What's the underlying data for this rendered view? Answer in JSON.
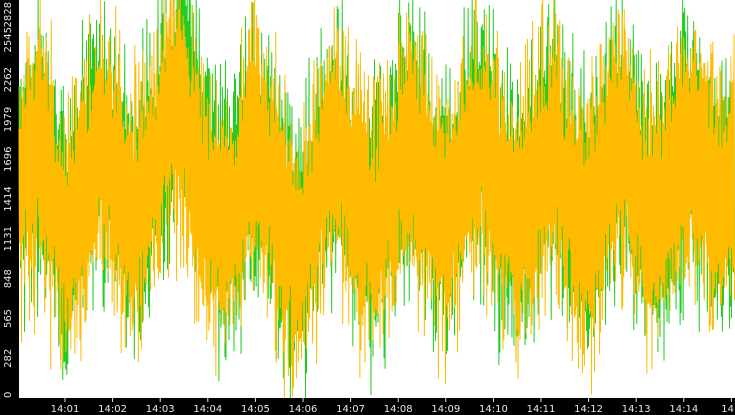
{
  "chart_data": {
    "type": "line",
    "title": "",
    "xlabel": "",
    "ylabel": "",
    "ylim": [
      0,
      2828
    ],
    "y_ticks": [
      "0",
      "282",
      "565",
      "848",
      "1131",
      "1414",
      "1696",
      "1979",
      "2262",
      "2545",
      "2828"
    ],
    "x_ticks": [
      "14:01",
      "14:02",
      "14:03",
      "14:04",
      "14:05",
      "14:06",
      "14:07",
      "14:08",
      "14:09",
      "14:10",
      "14:11",
      "14:12",
      "14:13",
      "14:14",
      "14"
    ],
    "grid": false,
    "legend": "none",
    "background": "#ffffff",
    "series": [
      {
        "color": "#22cc22",
        "x_range": [
          "14:00:34",
          "14:14:57"
        ],
        "samples": 240,
        "values": [
          1500,
          1650,
          1720,
          1690,
          1580,
          1620,
          1750,
          1820,
          1700,
          1600,
          1550,
          1480,
          1390,
          1320,
          1260,
          1200,
          1180,
          1230,
          1290,
          1350,
          1420,
          1500,
          1560,
          1610,
          1680,
          1740,
          1800,
          1860,
          1820,
          1750,
          1690,
          1620,
          1560,
          1500,
          1440,
          1390,
          1350,
          1330,
          1320,
          1340,
          1380,
          1430,
          1490,
          1560,
          1630,
          1700,
          1760,
          1820,
          1880,
          1930,
          2000,
          2100,
          2250,
          2400,
          2580,
          2450,
          2250,
          2050,
          1880,
          1760,
          1650,
          1560,
          1490,
          1430,
          1380,
          1340,
          1300,
          1280,
          1270,
          1290,
          1330,
          1380,
          1440,
          1500,
          1560,
          1620,
          1680,
          1740,
          1780,
          1800,
          1760,
          1700,
          1630,
          1560,
          1480,
          1400,
          1330,
          1270,
          1210,
          1150,
          1100,
          1070,
          1060,
          1080,
          1120,
          1180,
          1250,
          1320,
          1400,
          1480,
          1560,
          1640,
          1710,
          1760,
          1790,
          1780,
          1740,
          1680,
          1620,
          1560,
          1500,
          1440,
          1390,
          1350,
          1310,
          1280,
          1260,
          1250,
          1270,
          1300,
          1350,
          1400,
          1460,
          1520,
          1580,
          1640,
          1700,
          1750,
          1790,
          1820,
          1800,
          1760,
          1700,
          1640,
          1580,
          1520,
          1460,
          1410,
          1370,
          1340,
          1320,
          1310,
          1330,
          1370,
          1420,
          1480,
          1540,
          1600,
          1660,
          1720,
          1780,
          1830,
          1860,
          1840,
          1790,
          1730,
          1660,
          1590,
          1520,
          1460,
          1410,
          1370,
          1340,
          1320,
          1300,
          1290,
          1300,
          1330,
          1380,
          1440,
          1500,
          1560,
          1620,
          1680,
          1730,
          1770,
          1800,
          1790,
          1750,
          1690,
          1620,
          1550,
          1480,
          1420,
          1370,
          1330,
          1300,
          1280,
          1270,
          1290,
          1330,
          1380,
          1440,
          1500,
          1570,
          1640,
          1710,
          1770,
          1820,
          1850,
          1830,
          1780,
          1720,
          1650,
          1580,
          1510,
          1450,
          1400,
          1360,
          1330,
          1310,
          1300,
          1320,
          1360,
          1410,
          1470,
          1530,
          1600,
          1660,
          1720,
          1770,
          1810,
          1830,
          1800,
          1750,
          1690,
          1630,
          1570,
          1520,
          1480,
          1450,
          1430,
          1420,
          1440,
          1480,
          1530,
          1590,
          1650
        ]
      },
      {
        "color": "#ffbb00",
        "x_range": [
          "14:00:34",
          "14:14:57"
        ],
        "samples": 240,
        "values": [
          1480,
          1620,
          1690,
          1660,
          1540,
          1590,
          1720,
          1790,
          1670,
          1570,
          1510,
          1440,
          1350,
          1280,
          1220,
          1170,
          1150,
          1200,
          1260,
          1320,
          1390,
          1470,
          1530,
          1580,
          1650,
          1710,
          1770,
          1830,
          1790,
          1720,
          1660,
          1590,
          1530,
          1470,
          1410,
          1360,
          1320,
          1300,
          1290,
          1310,
          1350,
          1400,
          1460,
          1530,
          1600,
          1670,
          1730,
          1790,
          1850,
          1900,
          1950,
          2010,
          2060,
          2050,
          1980,
          1900,
          1820,
          1740,
          1660,
          1590,
          1520,
          1460,
          1410,
          1370,
          1330,
          1300,
          1270,
          1250,
          1240,
          1260,
          1300,
          1350,
          1410,
          1470,
          1530,
          1590,
          1650,
          1710,
          1750,
          1770,
          1730,
          1670,
          1600,
          1530,
          1450,
          1370,
          1300,
          1240,
          1180,
          1120,
          1070,
          1040,
          1030,
          1050,
          1090,
          1150,
          1220,
          1290,
          1370,
          1450,
          1530,
          1610,
          1680,
          1730,
          1760,
          1750,
          1710,
          1650,
          1590,
          1530,
          1470,
          1410,
          1360,
          1320,
          1280,
          1250,
          1230,
          1220,
          1240,
          1270,
          1320,
          1370,
          1430,
          1490,
          1550,
          1610,
          1670,
          1720,
          1760,
          1790,
          1770,
          1730,
          1670,
          1610,
          1550,
          1490,
          1430,
          1380,
          1340,
          1310,
          1290,
          1280,
          1300,
          1340,
          1390,
          1450,
          1510,
          1570,
          1630,
          1690,
          1750,
          1800,
          1830,
          1810,
          1760,
          1700,
          1630,
          1560,
          1490,
          1430,
          1380,
          1340,
          1310,
          1290,
          1270,
          1260,
          1270,
          1300,
          1350,
          1410,
          1470,
          1530,
          1590,
          1650,
          1700,
          1740,
          1770,
          1760,
          1720,
          1660,
          1590,
          1520,
          1450,
          1390,
          1340,
          1300,
          1270,
          1250,
          1240,
          1260,
          1300,
          1350,
          1410,
          1470,
          1540,
          1610,
          1680,
          1740,
          1790,
          1820,
          1800,
          1750,
          1690,
          1620,
          1550,
          1480,
          1420,
          1370,
          1330,
          1300,
          1280,
          1270,
          1290,
          1330,
          1380,
          1440,
          1500,
          1570,
          1630,
          1690,
          1740,
          1780,
          1800,
          1770,
          1720,
          1660,
          1600,
          1540,
          1490,
          1450,
          1420,
          1400,
          1390,
          1410,
          1450,
          1500,
          1560,
          1620
        ]
      }
    ]
  }
}
